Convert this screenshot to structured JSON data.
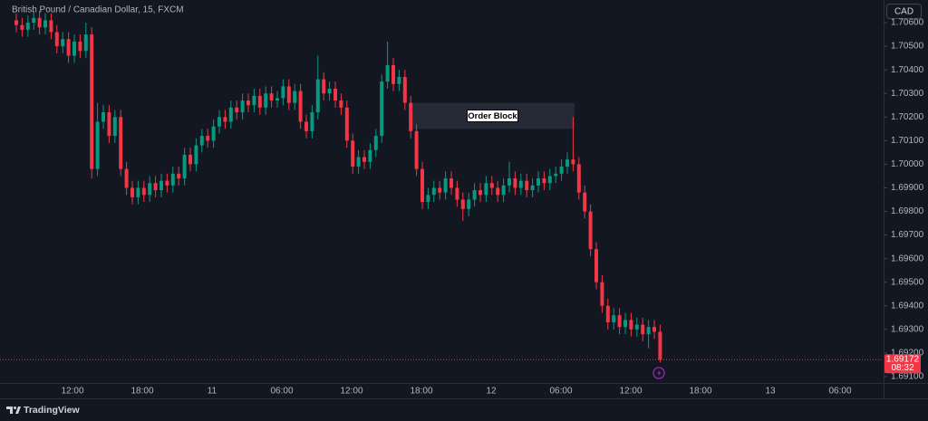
{
  "chart_data": {
    "type": "candlestick",
    "title": "British Pound / Canadian Dollar, 15, FXCM",
    "currency": "CAD",
    "open": [
      1.7061,
      1.7059,
      1.7057,
      1.706,
      1.7062,
      1.7058,
      1.7061,
      1.7056,
      1.705,
      1.7053,
      1.7046,
      1.7052,
      1.7048,
      1.7055,
      1.6998,
      1.7018,
      1.7022,
      1.7012,
      1.702,
      1.6998,
      1.699,
      1.6986,
      1.699,
      1.6987,
      1.6992,
      1.6989,
      1.6993,
      1.6991,
      1.6996,
      1.6994,
      1.7004,
      1.7,
      1.7008,
      1.7012,
      1.701,
      1.7016,
      1.702,
      1.7018,
      1.7024,
      1.7022,
      1.7027,
      1.7025,
      1.7029,
      1.7024,
      1.703,
      1.7027,
      1.7028,
      1.7033,
      1.7026,
      1.7031,
      1.7018,
      1.7014,
      1.7022,
      1.7036,
      1.703,
      1.7032,
      1.7027,
      1.7024,
      1.701,
      1.6999,
      1.7003,
      1.7001,
      1.7006,
      1.7012,
      1.7035,
      1.7042,
      1.7034,
      1.7037,
      1.7026,
      1.7014,
      1.6998,
      1.6984,
      1.6987,
      1.699,
      1.6988,
      1.6994,
      1.699,
      1.6985,
      1.6981,
      1.6985,
      1.6989,
      1.6987,
      1.6992,
      1.699,
      1.6987,
      1.6991,
      1.6994,
      1.699,
      1.6993,
      1.6989,
      1.6991,
      1.6994,
      1.6992,
      1.6995,
      1.6996,
      1.6999,
      1.7002,
      1.7,
      1.6988,
      1.698,
      1.6964,
      1.695,
      1.694,
      1.6933,
      1.6936,
      1.6931,
      1.6934,
      1.693,
      1.6932,
      1.6928,
      1.6931,
      1.6929
    ],
    "high": [
      1.7064,
      1.7062,
      1.7063,
      1.7065,
      1.7065,
      1.7064,
      1.7064,
      1.7059,
      1.7056,
      1.7056,
      1.7055,
      1.7055,
      1.706,
      1.7058,
      1.7026,
      1.7025,
      1.7025,
      1.7023,
      1.7023,
      1.7001,
      1.6993,
      1.6993,
      1.6993,
      1.6995,
      1.6995,
      1.6996,
      1.6996,
      1.6999,
      1.6999,
      1.7007,
      1.7007,
      1.7011,
      1.7015,
      1.7015,
      1.7019,
      1.7023,
      1.7023,
      1.7027,
      1.7027,
      1.703,
      1.703,
      1.7032,
      1.7032,
      1.7033,
      1.7033,
      1.7031,
      1.7036,
      1.7036,
      1.7034,
      1.7034,
      1.7021,
      1.7025,
      1.7046,
      1.7039,
      1.7035,
      1.7035,
      1.703,
      1.7027,
      1.7013,
      1.7006,
      1.7006,
      1.7009,
      1.7015,
      1.7038,
      1.7052,
      1.7045,
      1.704,
      1.704,
      1.7029,
      1.7017,
      1.7001,
      1.699,
      1.6993,
      1.6993,
      1.6997,
      1.6997,
      1.6993,
      1.6988,
      1.6988,
      1.6992,
      1.6992,
      1.6995,
      1.6995,
      1.6993,
      1.6994,
      1.7001,
      1.6997,
      1.6996,
      1.6996,
      1.6994,
      1.6997,
      1.6997,
      1.6998,
      1.6999,
      1.7002,
      1.7005,
      1.702,
      1.7003,
      1.6991,
      1.6983,
      1.6967,
      1.6953,
      1.6943,
      1.6939,
      1.6939,
      1.6937,
      1.6937,
      1.6935,
      1.6935,
      1.6934,
      1.6934,
      1.6932
    ],
    "low": [
      1.7056,
      1.7054,
      1.7054,
      1.7057,
      1.7055,
      1.7055,
      1.7053,
      1.7047,
      1.7047,
      1.7043,
      1.7043,
      1.7045,
      1.7045,
      1.6994,
      1.6995,
      1.7015,
      1.7009,
      1.7009,
      1.6995,
      1.6987,
      1.6983,
      1.6983,
      1.6984,
      1.6984,
      1.6986,
      1.6986,
      1.6988,
      1.6988,
      1.6991,
      1.6991,
      1.6997,
      1.6997,
      1.7005,
      1.7007,
      1.7007,
      1.7013,
      1.7015,
      1.7015,
      1.7019,
      1.7019,
      1.7022,
      1.7022,
      1.7021,
      1.7021,
      1.7024,
      1.7024,
      1.7025,
      1.7023,
      1.7023,
      1.7015,
      1.7011,
      1.7011,
      1.7019,
      1.7027,
      1.7027,
      1.7024,
      1.7021,
      1.7007,
      1.6996,
      1.6996,
      1.6998,
      1.6998,
      1.7003,
      1.7009,
      1.7032,
      1.7031,
      1.7031,
      1.7023,
      1.7011,
      1.6995,
      1.6981,
      1.6981,
      1.6984,
      1.6985,
      1.6985,
      1.6987,
      1.6982,
      1.6976,
      1.6978,
      1.6982,
      1.6984,
      1.6984,
      1.6987,
      1.6984,
      1.6984,
      1.6988,
      1.6987,
      1.6987,
      1.6986,
      1.6986,
      1.6988,
      1.6989,
      1.6989,
      1.6992,
      1.6993,
      1.6996,
      1.6997,
      1.6985,
      1.6977,
      1.6961,
      1.6947,
      1.6937,
      1.693,
      1.693,
      1.6928,
      1.6928,
      1.6927,
      1.6927,
      1.6925,
      1.6922,
      1.6926,
      1.6916
    ],
    "close": [
      1.7059,
      1.7057,
      1.706,
      1.7062,
      1.7058,
      1.7061,
      1.7056,
      1.705,
      1.7053,
      1.7046,
      1.7052,
      1.7048,
      1.7055,
      1.6998,
      1.7018,
      1.7022,
      1.7012,
      1.702,
      1.6998,
      1.699,
      1.6986,
      1.699,
      1.6987,
      1.6992,
      1.6989,
      1.6993,
      1.6991,
      1.6996,
      1.6994,
      1.7004,
      1.7,
      1.7008,
      1.7012,
      1.701,
      1.7016,
      1.702,
      1.7018,
      1.7024,
      1.7022,
      1.7027,
      1.7025,
      1.7029,
      1.7024,
      1.703,
      1.7027,
      1.7028,
      1.7033,
      1.7026,
      1.7031,
      1.7018,
      1.7014,
      1.7022,
      1.7036,
      1.703,
      1.7032,
      1.7027,
      1.7024,
      1.701,
      1.6999,
      1.7003,
      1.7001,
      1.7006,
      1.7012,
      1.7035,
      1.7042,
      1.7034,
      1.7037,
      1.7026,
      1.7014,
      1.6998,
      1.6984,
      1.6987,
      1.699,
      1.6988,
      1.6994,
      1.699,
      1.6985,
      1.6981,
      1.6985,
      1.6989,
      1.6987,
      1.6992,
      1.699,
      1.6987,
      1.6991,
      1.6994,
      1.699,
      1.6993,
      1.6989,
      1.6991,
      1.6994,
      1.6992,
      1.6995,
      1.6996,
      1.6999,
      1.7002,
      1.7,
      1.6988,
      1.698,
      1.6964,
      1.695,
      1.694,
      1.6933,
      1.6936,
      1.6931,
      1.6934,
      1.693,
      1.6932,
      1.6928,
      1.6931,
      1.6929,
      1.69172
    ],
    "up_color": "#089981",
    "down_color": "#f23645",
    "ylim": [
      1.69073,
      1.70696
    ],
    "yticks": [
      {
        "value": 1.691,
        "label": "1.69100"
      },
      {
        "value": 1.692,
        "label": "1.69200"
      },
      {
        "value": 1.693,
        "label": "1.69300"
      },
      {
        "value": 1.694,
        "label": "1.69400"
      },
      {
        "value": 1.695,
        "label": "1.69500"
      },
      {
        "value": 1.696,
        "label": "1.69600"
      },
      {
        "value": 1.697,
        "label": "1.69700"
      },
      {
        "value": 1.698,
        "label": "1.69800"
      },
      {
        "value": 1.699,
        "label": "1.69900"
      },
      {
        "value": 1.7,
        "label": "1.70000"
      },
      {
        "value": 1.701,
        "label": "1.70100"
      },
      {
        "value": 1.702,
        "label": "1.70200"
      },
      {
        "value": 1.703,
        "label": "1.70300"
      },
      {
        "value": 1.704,
        "label": "1.70400"
      },
      {
        "value": 1.705,
        "label": "1.70500"
      },
      {
        "value": 1.706,
        "label": "1.70600"
      }
    ],
    "xtick_labels": [
      "12:00",
      "18:00",
      "11",
      "06:00",
      "12:00",
      "18:00",
      "12",
      "06:00",
      "12:00",
      "18:00",
      "13",
      "06:00"
    ],
    "grid": false,
    "last_price": 1.69172,
    "countdown": "08:32",
    "order_block": {
      "label": "Order Block",
      "ylim": [
        1.7015,
        1.7026
      ]
    }
  },
  "brand": "TradingView"
}
